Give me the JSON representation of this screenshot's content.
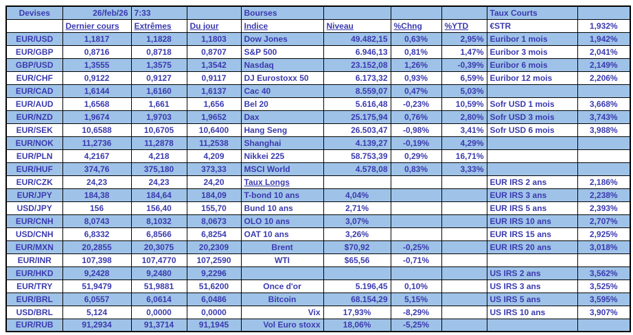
{
  "meta": {
    "date": "26/feb/26",
    "time": "7:33"
  },
  "colors": {
    "row_highlight": "#9FC3E8",
    "text": "#3A3AAF",
    "border": "#000000",
    "background": "#FFFFFF"
  },
  "devises": {
    "title": "Devises",
    "headers": [
      "Dernier cours",
      "Extrêmes",
      "Du jour"
    ],
    "rows": [
      {
        "pair": "EUR/USD",
        "last": "1,1817",
        "extremes": "1,1828",
        "dujour": "1,1803"
      },
      {
        "pair": "EUR/GBP",
        "last": "0,8716",
        "extremes": "0,8718",
        "dujour": "0,8707"
      },
      {
        "pair": "GBP/USD",
        "last": "1,3555",
        "extremes": "1,3575",
        "dujour": "1,3542"
      },
      {
        "pair": "EUR/CHF",
        "last": "0,9122",
        "extremes": "0,9127",
        "dujour": "0,9117"
      },
      {
        "pair": "EUR/CAD",
        "last": "1,6144",
        "extremes": "1,6160",
        "dujour": "1,6137"
      },
      {
        "pair": "EUR/AUD",
        "last": "1,6568",
        "extremes": "1,661",
        "dujour": "1,656"
      },
      {
        "pair": "EUR/NZD",
        "last": "1,9674",
        "extremes": "1,9703",
        "dujour": "1,9652"
      },
      {
        "pair": "EUR/SEK",
        "last": "10,6588",
        "extremes": "10,6705",
        "dujour": "10,6400"
      },
      {
        "pair": "EUR/NOK",
        "last": "11,2736",
        "extremes": "11,2878",
        "dujour": "11,2538"
      },
      {
        "pair": "EUR/PLN",
        "last": "4,2167",
        "extremes": "4,218",
        "dujour": "4,209"
      },
      {
        "pair": "EUR/HUF",
        "last": "374,76",
        "extremes": "375,180",
        "dujour": "373,33"
      },
      {
        "pair": "EUR/CZK",
        "last": "24,23",
        "extremes": "24,23",
        "dujour": "24,20"
      },
      {
        "pair": "EUR/JPY",
        "last": "184,38",
        "extremes": "184,64",
        "dujour": "184,09"
      },
      {
        "pair": "USD/JPY",
        "last": "156",
        "extremes": "156,40",
        "dujour": "155,70"
      },
      {
        "pair": "EUR/CNH",
        "last": "8,0743",
        "extremes": "8,1032",
        "dujour": "8,0673"
      },
      {
        "pair": "USD/CNH",
        "last": "6,8332",
        "extremes": "6,8566",
        "dujour": "6,8254"
      },
      {
        "pair": "EUR/MXN",
        "last": "20,2855",
        "extremes": "20,3075",
        "dujour": "20,2309"
      },
      {
        "pair": "EUR/INR",
        "last": "107,398",
        "extremes": "107,4770",
        "dujour": "107,2590"
      },
      {
        "pair": "EUR/HKD",
        "last": "9,2428",
        "extremes": "9,2480",
        "dujour": "9,2296"
      },
      {
        "pair": "EUR/TRY",
        "last": "51,9479",
        "extremes": "51,9881",
        "dujour": "51,6200"
      },
      {
        "pair": "EUR/BRL",
        "last": "6,0557",
        "extremes": "6,0614",
        "dujour": "6,0486"
      },
      {
        "pair": "USD/BRL",
        "last": "5,124",
        "extremes": "0,0000",
        "dujour": "0,0000"
      },
      {
        "pair": "EUR/RUB",
        "last": "91,2934",
        "extremes": "91,3714",
        "dujour": "91,1945"
      }
    ]
  },
  "bourses": {
    "title": "Bourses",
    "headers": [
      "Indice",
      "Niveau",
      "%Chng",
      "%YTD"
    ],
    "rows": [
      {
        "label": "Dow Jones",
        "niveau": "49.482,15",
        "chng": "0,63%",
        "ytd": "2,95%",
        "la": "left",
        "na": "right"
      },
      {
        "label": "S&P 500",
        "niveau": "6.946,13",
        "chng": "0,81%",
        "ytd": "1,47%",
        "la": "left",
        "na": "right"
      },
      {
        "label": "Nasdaq",
        "niveau": "23.152,08",
        "chng": "1,26%",
        "ytd": "-0,39%",
        "la": "left",
        "na": "right"
      },
      {
        "label": "DJ Eurostoxx 50",
        "niveau": "6.173,32",
        "chng": "0,93%",
        "ytd": "6,59%",
        "la": "left",
        "na": "right"
      },
      {
        "label": "Cac 40",
        "niveau": "8.559,07",
        "chng": "0,47%",
        "ytd": "5,03%",
        "la": "left",
        "na": "right"
      },
      {
        "label": "Bel 20",
        "niveau": "5.616,48",
        "chng": "-0,23%",
        "ytd": "10,59%",
        "la": "left",
        "na": "right"
      },
      {
        "label": "Dax",
        "niveau": "25.175,94",
        "chng": "0,76%",
        "ytd": "2,80%",
        "la": "left",
        "na": "right"
      },
      {
        "label": "Hang Seng",
        "niveau": "26.503,47",
        "chng": "-0,98%",
        "ytd": "3,41%",
        "la": "left",
        "na": "right"
      },
      {
        "label": "Shanghai",
        "niveau": "4.139,27",
        "chng": "-0,19%",
        "ytd": "4,29%",
        "la": "left",
        "na": "right"
      },
      {
        "label": "Nikkei 225",
        "niveau": "58.753,39",
        "chng": "0,29%",
        "ytd": "16,71%",
        "la": "left",
        "na": "right"
      },
      {
        "label": "MSCI World",
        "niveau": "4.578,08",
        "chng": "0,83%",
        "ytd": "3,33%",
        "la": "left",
        "na": "right"
      },
      {
        "label": "Taux Longs",
        "niveau": "",
        "chng": "",
        "ytd": "",
        "la": "left",
        "na": "left",
        "u": true
      },
      {
        "label": "T-bond 10 ans",
        "niveau": "4,04%",
        "chng": "",
        "ytd": "",
        "la": "left",
        "na": "center"
      },
      {
        "label": "Bund 10 ans",
        "niveau": "2,71%",
        "chng": "",
        "ytd": "",
        "la": "left",
        "na": "center"
      },
      {
        "label": "OLO 10 ans",
        "niveau": "3,07%",
        "chng": "",
        "ytd": "",
        "la": "left",
        "na": "center"
      },
      {
        "label": "OAT 10 ans",
        "niveau": "3,26%",
        "chng": "",
        "ytd": "",
        "la": "left",
        "na": "center"
      },
      {
        "label": "Brent",
        "niveau": "$70,92",
        "chng": "-0,25%",
        "ytd": "",
        "la": "center",
        "na": "center"
      },
      {
        "label": "WTI",
        "niveau": "$65,56",
        "chng": "-0,71%",
        "ytd": "",
        "la": "center",
        "na": "center"
      },
      {
        "label": "",
        "niveau": "",
        "chng": "",
        "ytd": "",
        "la": "left",
        "na": "left"
      },
      {
        "label": "Once d'or",
        "niveau": "5.196,45",
        "chng": "0,10%",
        "ytd": "",
        "la": "center",
        "na": "right"
      },
      {
        "label": "Bitcoin",
        "niveau": "68.154,29",
        "chng": "5,15%",
        "ytd": "",
        "la": "center",
        "na": "right"
      },
      {
        "label": "Vix",
        "niveau": "17,93%",
        "chng": "-8,29%",
        "ytd": "",
        "la": "right",
        "na": "center"
      },
      {
        "label": "Vol Euro stoxx",
        "niveau": "18,06%",
        "chng": "-5,25%",
        "ytd": "",
        "la": "right",
        "na": "center"
      }
    ]
  },
  "taux_courts": {
    "title": "Taux Courts",
    "rows": [
      {
        "label": "€STR",
        "value": "1,932%"
      },
      {
        "label": "Euribor 1 mois",
        "value": "1,942%"
      },
      {
        "label": "Euribor 3 mois",
        "value": "2,041%"
      },
      {
        "label": "Euribor 6 mois",
        "value": "2,149%"
      },
      {
        "label": "Euribor 12 mois",
        "value": "2,206%"
      },
      {
        "label": "",
        "value": ""
      },
      {
        "label": "Sofr USD 1 mois",
        "value": "3,668%"
      },
      {
        "label": "Sofr USD 3 mois",
        "value": "3,743%"
      },
      {
        "label": "Sofr USD 6 mois",
        "value": "3,988%"
      },
      {
        "label": "",
        "value": ""
      },
      {
        "label": "",
        "value": ""
      },
      {
        "label": "",
        "value": ""
      },
      {
        "label": "EUR IRS 2 ans",
        "value": "2,186%"
      },
      {
        "label": "EUR IRS 3 ans",
        "value": "2,238%"
      },
      {
        "label": "EUR IRS 5 ans",
        "value": "2,393%"
      },
      {
        "label": "EUR IRS 10 ans",
        "value": "2,707%"
      },
      {
        "label": "EUR IRS 15 ans",
        "value": "2,925%"
      },
      {
        "label": "EUR IRS 20 ans",
        "value": "3,018%"
      },
      {
        "label": "",
        "value": ""
      },
      {
        "label": "US IRS 2 ans",
        "value": "3,562%"
      },
      {
        "label": "US IRS 3 ans",
        "value": "3,525%"
      },
      {
        "label": "US IRS 5 ans",
        "value": "3,595%"
      },
      {
        "label": "US IRS 10 ans",
        "value": "3,907%"
      },
      {
        "label": "",
        "value": ""
      }
    ]
  }
}
